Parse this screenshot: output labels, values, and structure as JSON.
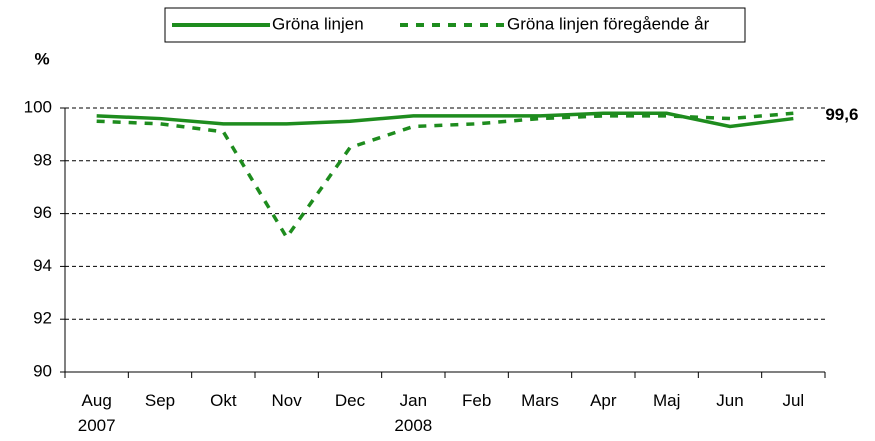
{
  "chart_data": {
    "type": "line",
    "y_label": "%",
    "categories": [
      "Aug\n2007",
      "Sep",
      "Okt",
      "Nov",
      "Dec",
      "Jan\n2008",
      "Feb",
      "Mars",
      "Apr",
      "Maj",
      "Jun",
      "Jul"
    ],
    "series": [
      {
        "name": "Gröna linjen",
        "color": "#1e8c1e",
        "dash": false,
        "values": [
          99.7,
          99.6,
          99.4,
          99.4,
          99.5,
          99.7,
          99.7,
          99.7,
          99.8,
          99.8,
          99.3,
          99.6
        ],
        "value_labels": [
          null,
          null,
          null,
          null,
          null,
          null,
          null,
          null,
          null,
          null,
          null,
          "99,6"
        ]
      },
      {
        "name": "Gröna linjen föregående år",
        "color": "#1e8c1e",
        "dash": true,
        "values": [
          99.5,
          99.4,
          99.1,
          95.1,
          98.5,
          99.3,
          99.4,
          99.6,
          99.7,
          99.7,
          99.6,
          99.8
        ]
      }
    ],
    "ylim": [
      90,
      100
    ],
    "yticks": [
      90,
      92,
      94,
      96,
      98,
      100
    ],
    "grid": true,
    "legend": "top"
  }
}
